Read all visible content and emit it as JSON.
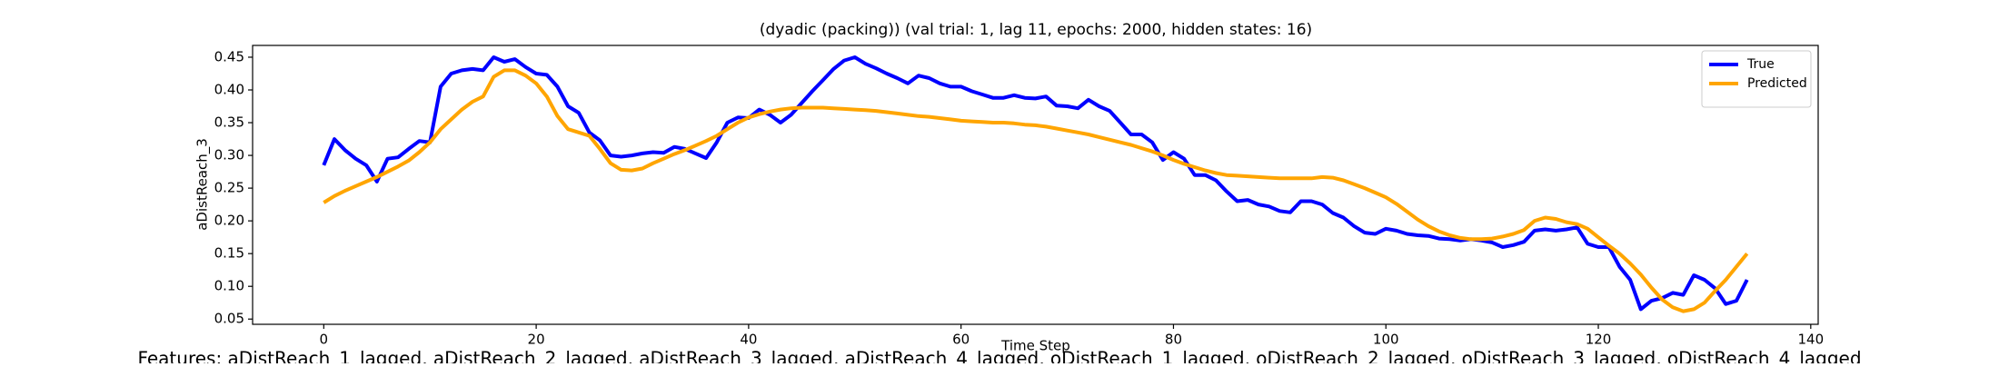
{
  "chart_data": {
    "type": "line",
    "title": "(dyadic (packing)) (val trial: 1, lag 11, epochs: 2000, hidden states: 16)",
    "xlabel": "Time Step",
    "ylabel": "aDistReach_3",
    "footnote": "Features: aDistReach_1_lagged, aDistReach_2_lagged, aDistReach_3_lagged, aDistReach_4_lagged, oDistReach_1_lagged, oDistReach_2_lagged, oDistReach_3_lagged, oDistReach_4_lagged",
    "x": [
      0,
      1,
      2,
      3,
      4,
      5,
      6,
      7,
      8,
      9,
      10,
      11,
      12,
      13,
      14,
      15,
      16,
      17,
      18,
      19,
      20,
      21,
      22,
      23,
      24,
      25,
      26,
      27,
      28,
      29,
      30,
      31,
      32,
      33,
      34,
      35,
      36,
      37,
      38,
      39,
      40,
      41,
      42,
      43,
      44,
      45,
      46,
      47,
      48,
      49,
      50,
      51,
      52,
      53,
      54,
      55,
      56,
      57,
      58,
      59,
      60,
      61,
      62,
      63,
      64,
      65,
      66,
      67,
      68,
      69,
      70,
      71,
      72,
      73,
      74,
      75,
      76,
      77,
      78,
      79,
      80,
      81,
      82,
      83,
      84,
      85,
      86,
      87,
      88,
      89,
      90,
      91,
      92,
      93,
      94,
      95,
      96,
      97,
      98,
      99,
      100,
      101,
      102,
      103,
      104,
      105,
      106,
      107,
      108,
      109,
      110,
      111,
      112,
      113,
      114,
      115,
      116,
      117,
      118,
      119,
      120,
      121,
      122,
      123,
      124,
      125,
      126,
      127,
      128,
      129,
      130,
      131,
      132,
      133,
      134
    ],
    "series": [
      {
        "name": "True",
        "color": "#0000ff",
        "values": [
          0.285,
          0.325,
          0.308,
          0.295,
          0.285,
          0.26,
          0.295,
          0.297,
          0.31,
          0.322,
          0.32,
          0.405,
          0.425,
          0.43,
          0.432,
          0.43,
          0.45,
          0.443,
          0.447,
          0.435,
          0.425,
          0.423,
          0.405,
          0.375,
          0.365,
          0.335,
          0.323,
          0.3,
          0.298,
          0.3,
          0.303,
          0.305,
          0.304,
          0.313,
          0.31,
          0.303,
          0.296,
          0.32,
          0.35,
          0.358,
          0.357,
          0.37,
          0.362,
          0.35,
          0.362,
          0.38,
          0.398,
          0.415,
          0.432,
          0.445,
          0.45,
          0.44,
          0.433,
          0.425,
          0.418,
          0.41,
          0.422,
          0.418,
          0.41,
          0.405,
          0.405,
          0.398,
          0.393,
          0.388,
          0.388,
          0.392,
          0.388,
          0.387,
          0.39,
          0.376,
          0.375,
          0.372,
          0.385,
          0.375,
          0.368,
          0.35,
          0.332,
          0.332,
          0.32,
          0.293,
          0.305,
          0.295,
          0.27,
          0.27,
          0.262,
          0.245,
          0.23,
          0.232,
          0.225,
          0.222,
          0.215,
          0.213,
          0.23,
          0.23,
          0.225,
          0.212,
          0.205,
          0.192,
          0.182,
          0.18,
          0.188,
          0.185,
          0.18,
          0.178,
          0.177,
          0.173,
          0.172,
          0.17,
          0.172,
          0.17,
          0.167,
          0.16,
          0.163,
          0.168,
          0.185,
          0.187,
          0.185,
          0.187,
          0.19,
          0.165,
          0.16,
          0.16,
          0.13,
          0.11,
          0.065,
          0.078,
          0.082,
          0.09,
          0.087,
          0.117,
          0.11,
          0.097,
          0.073,
          0.078,
          0.11
        ]
      },
      {
        "name": "Predicted",
        "color": "#ffa500",
        "values": [
          0.228,
          0.238,
          0.246,
          0.253,
          0.26,
          0.267,
          0.275,
          0.283,
          0.292,
          0.305,
          0.32,
          0.34,
          0.355,
          0.37,
          0.382,
          0.39,
          0.42,
          0.43,
          0.43,
          0.422,
          0.41,
          0.39,
          0.36,
          0.34,
          0.335,
          0.33,
          0.31,
          0.288,
          0.278,
          0.277,
          0.28,
          0.288,
          0.295,
          0.302,
          0.308,
          0.315,
          0.322,
          0.33,
          0.34,
          0.35,
          0.358,
          0.363,
          0.367,
          0.37,
          0.372,
          0.373,
          0.373,
          0.373,
          0.372,
          0.371,
          0.37,
          0.369,
          0.368,
          0.366,
          0.364,
          0.362,
          0.36,
          0.359,
          0.357,
          0.355,
          0.353,
          0.352,
          0.351,
          0.35,
          0.35,
          0.349,
          0.347,
          0.346,
          0.344,
          0.341,
          0.338,
          0.335,
          0.332,
          0.328,
          0.324,
          0.32,
          0.316,
          0.311,
          0.306,
          0.3,
          0.293,
          0.287,
          0.282,
          0.277,
          0.273,
          0.27,
          0.269,
          0.268,
          0.267,
          0.266,
          0.265,
          0.265,
          0.265,
          0.265,
          0.267,
          0.266,
          0.262,
          0.256,
          0.25,
          0.243,
          0.236,
          0.226,
          0.214,
          0.202,
          0.192,
          0.184,
          0.178,
          0.174,
          0.172,
          0.172,
          0.173,
          0.176,
          0.18,
          0.186,
          0.2,
          0.205,
          0.203,
          0.198,
          0.195,
          0.188,
          0.175,
          0.162,
          0.15,
          0.135,
          0.118,
          0.098,
          0.08,
          0.068,
          0.062,
          0.065,
          0.075,
          0.093,
          0.11,
          0.13,
          0.15
        ]
      }
    ],
    "xlim": [
      -6.7,
      140.7
    ],
    "xticks": [
      0,
      20,
      40,
      60,
      80,
      100,
      120,
      140
    ],
    "ylim": [
      0.042,
      0.468
    ],
    "yticks": [
      0.05,
      {
        "value": 0.1,
        "label": "0.10"
      },
      0.15,
      {
        "value": 0.2,
        "label": "0.20"
      },
      0.25,
      {
        "value": 0.3,
        "label": "0.30"
      },
      0.35,
      {
        "value": 0.4,
        "label": "0.40"
      },
      0.45
    ],
    "legend": "upper right"
  }
}
